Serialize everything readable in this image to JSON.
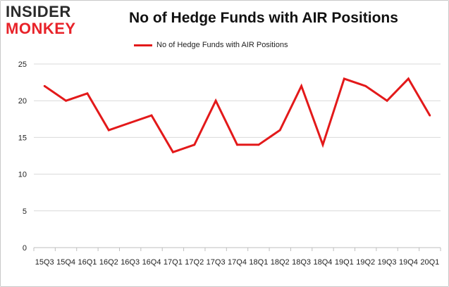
{
  "logo": {
    "line1": "INSIDER",
    "line2": "MONKEY"
  },
  "colors": {
    "series": "#e3191a",
    "grid": "#d9d9d9",
    "axis": "#bfbfbf",
    "logo_red": "#e8232a",
    "logo_dark": "#2a2a2a"
  },
  "chart_data": {
    "type": "line",
    "title": "No of Hedge Funds with AIR Positions",
    "xlabel": "",
    "ylabel": "",
    "ylim": [
      0,
      25
    ],
    "yticks": [
      0,
      5,
      10,
      15,
      20,
      25
    ],
    "grid": true,
    "legend": "top-center",
    "x_tick_labels": [
      "15Q3",
      "15Q4",
      "16Q1",
      "16Q2",
      "16Q3",
      "16Q4",
      "17Q1",
      "17Q2",
      "17Q3",
      "17Q4",
      "18Q1",
      "18Q2",
      "18Q3",
      "18Q4",
      "19Q1",
      "19Q2",
      "19Q3",
      "19Q4",
      "20Q1"
    ],
    "series": [
      {
        "name": "No of Hedge Funds with AIR Positions",
        "values": [
          22,
          20,
          21,
          16,
          17,
          18,
          13,
          14,
          20,
          14,
          14,
          16,
          22,
          14,
          23,
          22,
          20,
          23,
          18
        ]
      }
    ]
  }
}
